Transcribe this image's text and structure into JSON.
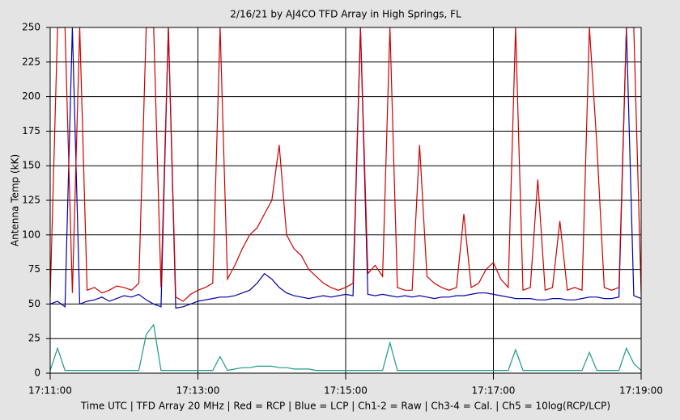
{
  "chart_data": {
    "type": "line",
    "title": "2/16/21  by  AJ4CO TFD Array  in  High Springs, FL",
    "y_label": "Antenna Temp (kK)",
    "x_label": "Time UTC | TFD Array 20 MHz | Red = RCP | Blue = LCP | Ch1-2 = Raw | Ch3-4 = Cal. | Ch5 = 10log(RCP/LCP)",
    "x": [
      "17:11:00",
      "17:11:06",
      "17:11:12",
      "17:11:18",
      "17:11:24",
      "17:11:30",
      "17:11:36",
      "17:11:42",
      "17:11:48",
      "17:11:54",
      "17:12:00",
      "17:12:06",
      "17:12:12",
      "17:12:18",
      "17:12:24",
      "17:12:30",
      "17:12:36",
      "17:12:42",
      "17:12:48",
      "17:12:54",
      "17:13:00",
      "17:13:06",
      "17:13:12",
      "17:13:18",
      "17:13:24",
      "17:13:30",
      "17:13:36",
      "17:13:42",
      "17:13:48",
      "17:13:54",
      "17:14:00",
      "17:14:06",
      "17:14:12",
      "17:14:18",
      "17:14:24",
      "17:14:30",
      "17:14:36",
      "17:14:42",
      "17:14:48",
      "17:14:54",
      "17:15:00",
      "17:15:06",
      "17:15:12",
      "17:15:18",
      "17:15:24",
      "17:15:30",
      "17:15:36",
      "17:15:42",
      "17:15:48",
      "17:15:54",
      "17:16:00",
      "17:16:06",
      "17:16:12",
      "17:16:18",
      "17:16:24",
      "17:16:30",
      "17:16:36",
      "17:16:42",
      "17:16:48",
      "17:16:54",
      "17:17:00",
      "17:17:06",
      "17:17:12",
      "17:17:18",
      "17:17:24",
      "17:17:30",
      "17:17:36",
      "17:17:42",
      "17:17:48",
      "17:17:54",
      "17:18:00",
      "17:18:06",
      "17:18:12",
      "17:18:18",
      "17:18:24",
      "17:18:30",
      "17:18:36",
      "17:18:42",
      "17:18:48",
      "17:18:54",
      "17:19:00"
    ],
    "series": [
      {
        "name": "RCP",
        "color": "#cc0000",
        "values": [
          55,
          250,
          250,
          58,
          250,
          60,
          62,
          58,
          60,
          63,
          62,
          60,
          65,
          250,
          250,
          62,
          250,
          55,
          52,
          57,
          60,
          62,
          65,
          250,
          68,
          78,
          90,
          100,
          105,
          115,
          125,
          165,
          100,
          90,
          85,
          75,
          70,
          65,
          62,
          60,
          62,
          65,
          250,
          72,
          78,
          70,
          250,
          62,
          60,
          60,
          165,
          70,
          65,
          62,
          60,
          62,
          115,
          62,
          65,
          75,
          80,
          68,
          62,
          250,
          60,
          62,
          140,
          60,
          62,
          110,
          60,
          62,
          60,
          250,
          165,
          62,
          60,
          62,
          250,
          250,
          58
        ]
      },
      {
        "name": "LCP",
        "color": "#0000aa",
        "values": [
          50,
          52,
          48,
          250,
          50,
          52,
          53,
          55,
          52,
          54,
          56,
          55,
          57,
          53,
          50,
          48,
          250,
          47,
          48,
          50,
          52,
          53,
          54,
          55,
          55,
          56,
          58,
          60,
          65,
          72,
          68,
          62,
          58,
          56,
          55,
          54,
          55,
          56,
          55,
          56,
          57,
          56,
          250,
          57,
          56,
          57,
          56,
          55,
          56,
          55,
          56,
          55,
          54,
          55,
          55,
          56,
          56,
          57,
          58,
          58,
          57,
          56,
          55,
          54,
          54,
          54,
          53,
          53,
          54,
          54,
          53,
          53,
          54,
          55,
          55,
          54,
          54,
          55,
          250,
          56,
          54
        ]
      },
      {
        "name": "Ch5",
        "color": "#1e9a8a",
        "values": [
          2,
          18,
          2,
          2,
          2,
          2,
          2,
          2,
          2,
          2,
          2,
          2,
          2,
          28,
          35,
          2,
          2,
          2,
          2,
          2,
          2,
          2,
          2,
          12,
          2,
          3,
          4,
          4,
          5,
          5,
          5,
          4,
          4,
          3,
          3,
          3,
          2,
          2,
          2,
          2,
          2,
          2,
          2,
          2,
          2,
          2,
          22,
          2,
          2,
          2,
          2,
          2,
          2,
          2,
          2,
          2,
          2,
          2,
          2,
          2,
          2,
          2,
          2,
          17,
          2,
          2,
          2,
          2,
          2,
          2,
          2,
          2,
          2,
          15,
          2,
          2,
          2,
          2,
          18,
          7,
          2
        ]
      }
    ],
    "xlim": [
      "17:11:00",
      "17:19:00"
    ],
    "xticks": [
      "17:11:00",
      "17:13:00",
      "17:15:00",
      "17:17:00",
      "17:19:00"
    ],
    "ylim": [
      0,
      250
    ],
    "yticks": [
      0,
      25,
      50,
      75,
      100,
      125,
      150,
      175,
      200,
      225,
      250
    ],
    "grid": true
  }
}
